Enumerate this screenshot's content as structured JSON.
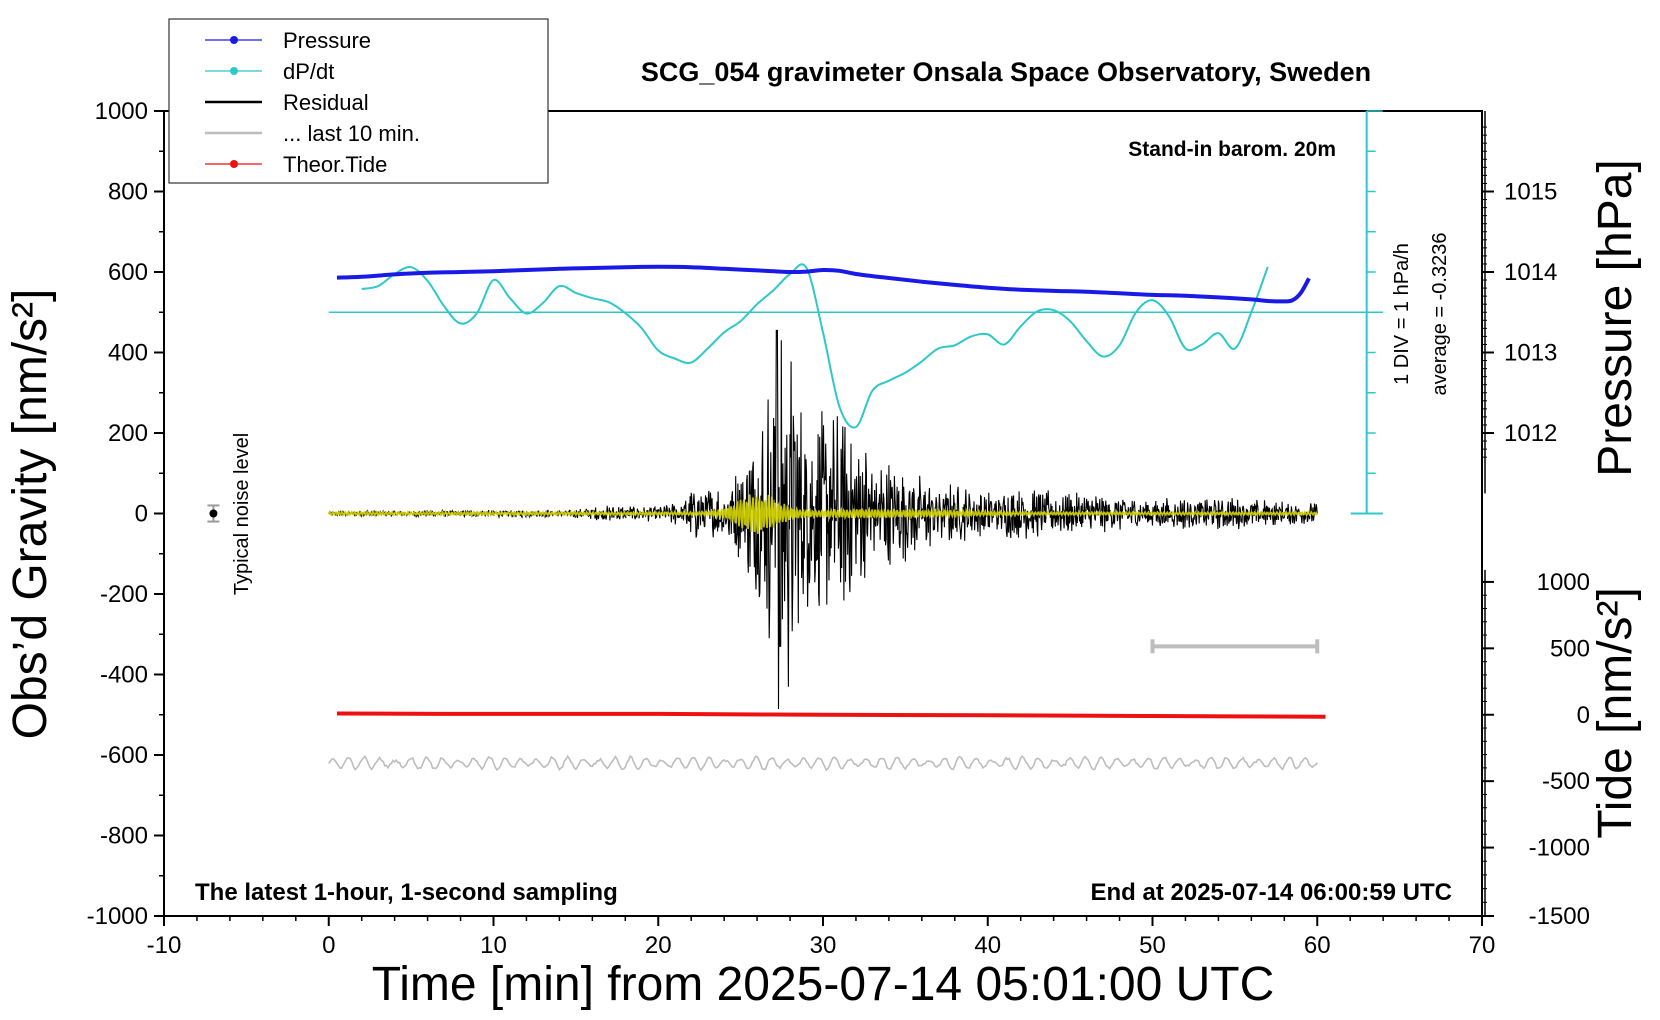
{
  "colors": {
    "pressure": "#1a1ae6",
    "dpdt": "#2ec8c8",
    "residual": "#000000",
    "last10": "#bdbdbd",
    "tide": "#ee1111",
    "filtered": "#d4d400",
    "noise_bar": "#999999"
  },
  "chart_data": {
    "type": "line",
    "title": "SCG_054 gravimeter Onsala Space Observatory, Sweden",
    "xlabel": "Time [min] from 2025-07-14 05:01:00 UTC",
    "ylabel_left": "Obs’d Gravity [nm/s²]",
    "ylabel_right_pressure": "Pressure [hPa]",
    "ylabel_right_tide": "Tide [nm/s²]",
    "xlim": [
      -10,
      70
    ],
    "ylim_left": [
      -1000,
      1000
    ],
    "xticks": [
      "-10",
      "0",
      "10",
      "20",
      "30",
      "40",
      "50",
      "60",
      "70"
    ],
    "yticks_left": [
      "1000",
      "800",
      "600",
      "400",
      "200",
      "0",
      "-200",
      "-400",
      "-600",
      "-800",
      "-1000"
    ],
    "pressure_axis": {
      "ticks": [
        "1015",
        "1014",
        "1013",
        "1012"
      ],
      "tick_values": [
        1015,
        1014,
        1013,
        1012
      ],
      "gravity_equiv": [
        800,
        600,
        400,
        200
      ]
    },
    "tide_axis": {
      "ticks": [
        "1000",
        "500",
        "0",
        "-500",
        "-1000",
        "-1500"
      ],
      "tick_values": [
        1000,
        500,
        0,
        -500,
        -1000,
        -1500
      ],
      "gravity_equiv": [
        -170,
        -335,
        -500,
        -665,
        -830,
        -1000
      ]
    },
    "legend": [
      {
        "label": "Pressure",
        "color": "#1a1ae6",
        "marker": true
      },
      {
        "label": "dP/dt",
        "color": "#2ec8c8",
        "marker": true
      },
      {
        "label": "Residual",
        "color": "#000000",
        "marker": false
      },
      {
        "label": "... last 10 min.",
        "color": "#bdbdbd",
        "marker": false
      },
      {
        "label": "Theor.Tide",
        "color": "#ee1111",
        "marker": true
      }
    ],
    "legend_position": "top-left",
    "annotations": {
      "stand_in": "Stand-in barom. 20m",
      "div_label": "1 DIV = 1 hPa/h",
      "average_label": "average = -0.3236",
      "noise_label": "Typical noise level",
      "bottom_left": "The latest 1-hour, 1-second sampling",
      "bottom_right": "End at 2025-07-14 06:00:59 UTC"
    },
    "noise_level": {
      "x": -7,
      "y": 0,
      "err": 20
    },
    "last10_bar": {
      "x_start": 50,
      "x_end": 60,
      "y": -330
    },
    "dpdt_scale": {
      "x": 63,
      "y_bottom": 0,
      "y_top": 1000,
      "baseline": 500,
      "div_nms2": 100
    },
    "series": [
      {
        "name": "Pressure",
        "unit": "gravity-scaled",
        "x": [
          0.5,
          2,
          4,
          6,
          8,
          10,
          12,
          14,
          16,
          18,
          20,
          22,
          24,
          26,
          28,
          29,
          30,
          31,
          32,
          34,
          36,
          38,
          40,
          42,
          44,
          46,
          48,
          50,
          52,
          54,
          56,
          57,
          58,
          58.5,
          59,
          59.5
        ],
        "y": [
          586,
          588,
          594,
          598,
          600,
          602,
          605,
          608,
          610,
          612,
          613,
          612,
          608,
          604,
          600,
          601,
          605,
          603,
          595,
          585,
          576,
          568,
          561,
          556,
          553,
          551,
          547,
          543,
          541,
          537,
          532,
          528,
          527,
          530,
          548,
          584
        ]
      },
      {
        "name": "dP/dt",
        "unit": "gravity-scaled",
        "x": [
          2,
          3,
          4,
          5,
          6,
          7,
          8,
          9,
          10,
          11,
          12,
          13,
          14,
          15,
          16,
          17,
          18,
          19,
          20,
          21,
          22,
          23,
          24,
          25,
          26,
          27,
          28,
          29,
          30,
          31,
          32,
          33,
          34,
          35,
          36,
          37,
          38,
          39,
          40,
          41,
          42,
          43,
          44,
          45,
          46,
          47,
          48,
          49,
          50,
          51,
          52,
          53,
          54,
          55,
          56,
          57
        ],
        "y": [
          558,
          565,
          595,
          612,
          578,
          515,
          472,
          498,
          580,
          535,
          497,
          523,
          565,
          548,
          535,
          525,
          498,
          460,
          405,
          385,
          375,
          410,
          450,
          478,
          520,
          555,
          595,
          610,
          450,
          265,
          215,
          305,
          330,
          350,
          378,
          410,
          418,
          440,
          445,
          420,
          465,
          502,
          505,
          478,
          428,
          390,
          418,
          500,
          530,
          490,
          410,
          420,
          448,
          410,
          500,
          613
        ]
      },
      {
        "name": "Theor.Tide",
        "unit": "gravity-scaled",
        "x": [
          0.5,
          10,
          20,
          30,
          40,
          50,
          55,
          60.5
        ],
        "y": [
          -497,
          -498,
          -498,
          -500,
          -501,
          -503,
          -504,
          -505
        ]
      }
    ],
    "residual_envelope": {
      "description": "1-second residual trace, envelope amplitudes (nm/s²) by minute",
      "x": [
        0,
        5,
        10,
        15,
        17,
        20,
        21.5,
        22,
        23,
        24,
        25,
        25.5,
        26,
        26.5,
        27,
        27.3,
        27.6,
        28,
        28.5,
        29,
        30,
        31,
        32,
        33,
        34,
        35,
        36,
        38,
        40,
        42,
        45,
        50,
        55,
        60
      ],
      "amp": [
        5,
        6,
        7,
        8,
        15,
        15,
        25,
        55,
        50,
        65,
        85,
        130,
        160,
        220,
        300,
        420,
        380,
        330,
        250,
        180,
        190,
        190,
        150,
        120,
        100,
        90,
        70,
        55,
        45,
        50,
        40,
        30,
        30,
        20
      ]
    },
    "last10_trace": {
      "x_start": 0,
      "x_end": 60,
      "y_center": -620,
      "amp": 15
    }
  }
}
